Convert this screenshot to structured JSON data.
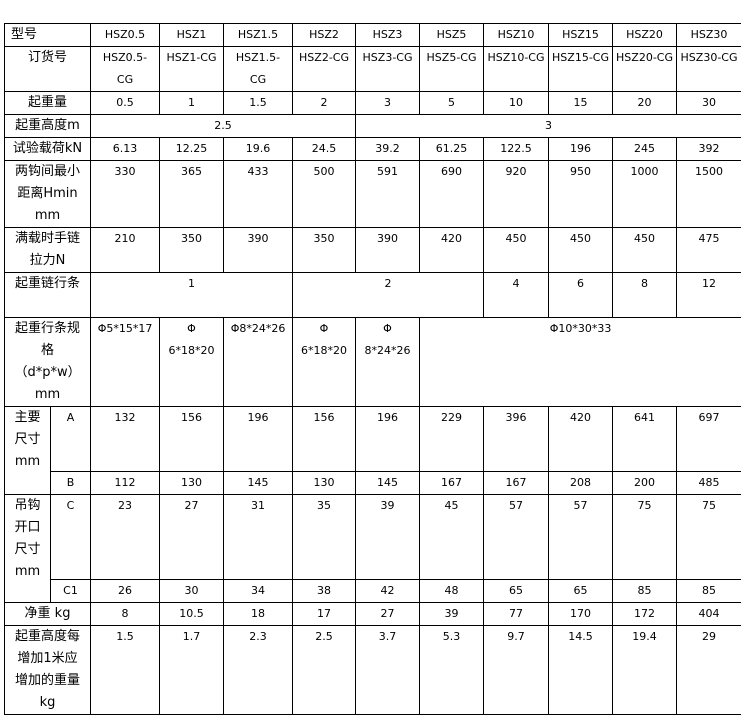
{
  "table": {
    "rows": [
      {
        "name": "model",
        "cells": [
          {
            "t": "型号",
            "cs": 2,
            "lbl": 1,
            "left": 1
          },
          {
            "t": "HSZ0.5"
          },
          {
            "t": "HSZ1"
          },
          {
            "t": "HSZ1.5"
          },
          {
            "t": "HSZ2"
          },
          {
            "t": "HSZ3"
          },
          {
            "t": "HSZ5"
          },
          {
            "t": "HSZ10"
          },
          {
            "t": "HSZ15"
          },
          {
            "t": "HSZ20"
          },
          {
            "t": "HSZ30"
          }
        ]
      },
      {
        "name": "order-number",
        "cells": [
          {
            "t": "订货号",
            "cs": 2,
            "lbl": 1
          },
          {
            "t": "HSZ0.5-\nCG"
          },
          {
            "t": "HSZ1-CG"
          },
          {
            "t": "HSZ1.5-\nCG"
          },
          {
            "t": "HSZ2-CG"
          },
          {
            "t": "HSZ3-CG"
          },
          {
            "t": "HSZ5-CG"
          },
          {
            "t": "HSZ10-CG"
          },
          {
            "t": "HSZ15-CG"
          },
          {
            "t": "HSZ20-CG"
          },
          {
            "t": "HSZ30-CG"
          }
        ]
      },
      {
        "name": "capacity",
        "cells": [
          {
            "t": "起重量",
            "cs": 2,
            "lbl": 1
          },
          {
            "t": "0.5"
          },
          {
            "t": "1"
          },
          {
            "t": "1.5"
          },
          {
            "t": "2"
          },
          {
            "t": "3"
          },
          {
            "t": "5"
          },
          {
            "t": "10"
          },
          {
            "t": "15"
          },
          {
            "t": "20"
          },
          {
            "t": "30"
          }
        ]
      },
      {
        "name": "lift-height",
        "cells": [
          {
            "t": "起重高度m",
            "cs": 2,
            "lbl": 1
          },
          {
            "t": "2.5",
            "cs": 4
          },
          {
            "t": "3",
            "cs": 6
          }
        ]
      },
      {
        "name": "test-load",
        "cells": [
          {
            "t": "试验载荷kN",
            "cs": 2,
            "lbl": 1
          },
          {
            "t": "6.13"
          },
          {
            "t": "12.25"
          },
          {
            "t": "19.6"
          },
          {
            "t": "24.5"
          },
          {
            "t": "39.2"
          },
          {
            "t": "61.25"
          },
          {
            "t": "122.5"
          },
          {
            "t": "196"
          },
          {
            "t": "245"
          },
          {
            "t": "392"
          }
        ]
      },
      {
        "name": "min-hook-distance",
        "cells": [
          {
            "t": "两钩间最小\n距离Hmin\nmm",
            "cs": 2,
            "lbl": 1
          },
          {
            "t": "330"
          },
          {
            "t": "365"
          },
          {
            "t": "433"
          },
          {
            "t": "500"
          },
          {
            "t": "591"
          },
          {
            "t": "690"
          },
          {
            "t": "920"
          },
          {
            "t": "950"
          },
          {
            "t": "1000"
          },
          {
            "t": "1500"
          }
        ]
      },
      {
        "name": "hand-chain-pull",
        "cells": [
          {
            "t": "满载时手链\n拉力N",
            "cs": 2,
            "lbl": 1
          },
          {
            "t": "210"
          },
          {
            "t": "350"
          },
          {
            "t": "390"
          },
          {
            "t": "350"
          },
          {
            "t": "390"
          },
          {
            "t": "420"
          },
          {
            "t": "450"
          },
          {
            "t": "450"
          },
          {
            "t": "450"
          },
          {
            "t": "475"
          }
        ]
      },
      {
        "name": "load-chain-falls",
        "cells": [
          {
            "t": "起重链行条",
            "cs": 2,
            "lbl": 1
          },
          {
            "t": "1",
            "cs": 3
          },
          {
            "t": "2",
            "cs": 3
          },
          {
            "t": "4"
          },
          {
            "t": "6"
          },
          {
            "t": "8"
          },
          {
            "t": "12"
          }
        ]
      },
      {
        "name": "chain-spec",
        "cells": [
          {
            "t": "起重行条规\n格\n（d*p*w）\nmm",
            "cs": 2,
            "lbl": 1
          },
          {
            "t": "Φ5*15*17"
          },
          {
            "t": "Φ\n6*18*20"
          },
          {
            "t": "Φ8*24*26"
          },
          {
            "t": "Φ\n6*18*20"
          },
          {
            "t": "Φ\n8*24*26"
          },
          {
            "t": "Φ10*30*33",
            "cs": 5
          }
        ]
      },
      {
        "name": "dimension-a",
        "cells": [
          {
            "t": "主要\n尺寸\nmm",
            "rs": 2,
            "lbl": 1
          },
          {
            "t": "A"
          },
          {
            "t": "132"
          },
          {
            "t": "156"
          },
          {
            "t": "196"
          },
          {
            "t": "156"
          },
          {
            "t": "196"
          },
          {
            "t": "229"
          },
          {
            "t": "396"
          },
          {
            "t": "420"
          },
          {
            "t": "641"
          },
          {
            "t": "697"
          }
        ]
      },
      {
        "name": "dimension-b",
        "cells": [
          {
            "t": "B"
          },
          {
            "t": "112"
          },
          {
            "t": "130"
          },
          {
            "t": "145"
          },
          {
            "t": "130"
          },
          {
            "t": "145"
          },
          {
            "t": "167"
          },
          {
            "t": "167"
          },
          {
            "t": "208"
          },
          {
            "t": "200"
          },
          {
            "t": "485"
          }
        ]
      },
      {
        "name": "hook-opening-c",
        "cells": [
          {
            "t": "吊钩\n开口\n尺寸\nmm",
            "rs": 2,
            "lbl": 1
          },
          {
            "t": "C"
          },
          {
            "t": "23"
          },
          {
            "t": "27"
          },
          {
            "t": "31"
          },
          {
            "t": "35"
          },
          {
            "t": "39"
          },
          {
            "t": "45"
          },
          {
            "t": "57"
          },
          {
            "t": "57"
          },
          {
            "t": "75"
          },
          {
            "t": "75"
          }
        ]
      },
      {
        "name": "hook-opening-c1",
        "cells": [
          {
            "t": "C1"
          },
          {
            "t": "26"
          },
          {
            "t": "30"
          },
          {
            "t": "34"
          },
          {
            "t": "38"
          },
          {
            "t": "42"
          },
          {
            "t": "48"
          },
          {
            "t": "65"
          },
          {
            "t": "65"
          },
          {
            "t": "85"
          },
          {
            "t": "85"
          }
        ]
      },
      {
        "name": "net-weight",
        "cells": [
          {
            "t": "净重 kg",
            "cs": 2,
            "lbl": 1
          },
          {
            "t": "8"
          },
          {
            "t": "10.5"
          },
          {
            "t": "18"
          },
          {
            "t": "17"
          },
          {
            "t": "27"
          },
          {
            "t": "39"
          },
          {
            "t": "77"
          },
          {
            "t": "170"
          },
          {
            "t": "172"
          },
          {
            "t": "404"
          }
        ]
      },
      {
        "name": "extra-weight-per-meter",
        "cells": [
          {
            "t": "起重高度每\n增加1米应\n增加的重量\nkg",
            "cs": 2,
            "lbl": 1
          },
          {
            "t": "1.5"
          },
          {
            "t": "1.7"
          },
          {
            "t": "2.3"
          },
          {
            "t": "2.5"
          },
          {
            "t": "3.7"
          },
          {
            "t": "5.3"
          },
          {
            "t": "9.7"
          },
          {
            "t": "14.5"
          },
          {
            "t": "19.4"
          },
          {
            "t": "29"
          }
        ]
      }
    ]
  }
}
